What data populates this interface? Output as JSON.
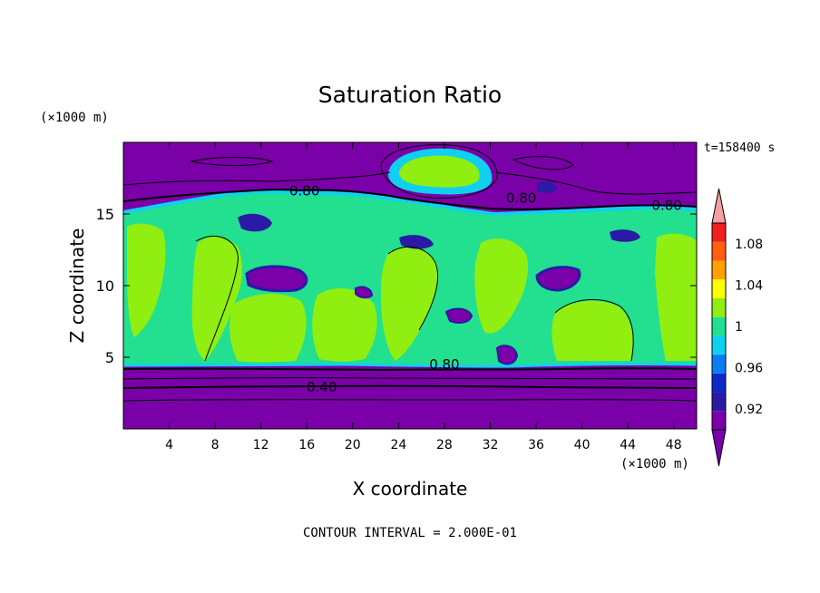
{
  "chart_data": {
    "type": "contour",
    "title": "Saturation Ratio",
    "xlabel": "X coordinate",
    "ylabel": "Z coordinate",
    "x_unit": "(×1000 m)",
    "y_unit": "(×1000 m)",
    "time_label": "t=158400 s",
    "footer": "CONTOUR INTERVAL = 2.000E-01",
    "xlim": [
      0,
      50
    ],
    "ylim": [
      0,
      20
    ],
    "x_ticks": [
      "4",
      "8",
      "12",
      "16",
      "20",
      "24",
      "28",
      "32",
      "36",
      "40",
      "44",
      "48"
    ],
    "x_tick_values": [
      4,
      8,
      12,
      16,
      20,
      24,
      28,
      32,
      36,
      40,
      44,
      48
    ],
    "y_ticks": [
      "5",
      "10",
      "15"
    ],
    "y_tick_values": [
      5,
      10,
      15
    ],
    "contour_labels": [
      {
        "text": "0.80",
        "x": 15.8,
        "z": 16.6
      },
      {
        "text": "0.80",
        "x": 34.7,
        "z": 16.1
      },
      {
        "text": "0.80",
        "x": 47.4,
        "z": 15.6
      },
      {
        "text": "0.80",
        "x": 28.0,
        "z": 4.5
      },
      {
        "text": "0.40",
        "x": 17.3,
        "z": 2.9
      }
    ],
    "colorbar": {
      "labels": [
        "1.08",
        "1.04",
        "1",
        "0.96",
        "0.92"
      ],
      "label_values": [
        1.08,
        1.04,
        1.0,
        0.96,
        0.92
      ],
      "levels": [
        0.9,
        0.92,
        0.94,
        0.96,
        0.98,
        1.0,
        1.02,
        1.04,
        1.06,
        1.08,
        1.1
      ],
      "colors": [
        "#7a00a8",
        "#2a1aa6",
        "#0f28c8",
        "#0a7df5",
        "#10d0f0",
        "#22e090",
        "#90ee10",
        "#ffff00",
        "#ffa000",
        "#ff6010",
        "#f02020"
      ],
      "under_color": "#7a00a8",
      "over_color": "#f4a0a0"
    },
    "palette": {
      "below": "#7a00a8",
      "cyan": "#10d0f0",
      "green": "#22e090",
      "lime": "#90ee10",
      "blue": "#2a1aa6"
    }
  }
}
